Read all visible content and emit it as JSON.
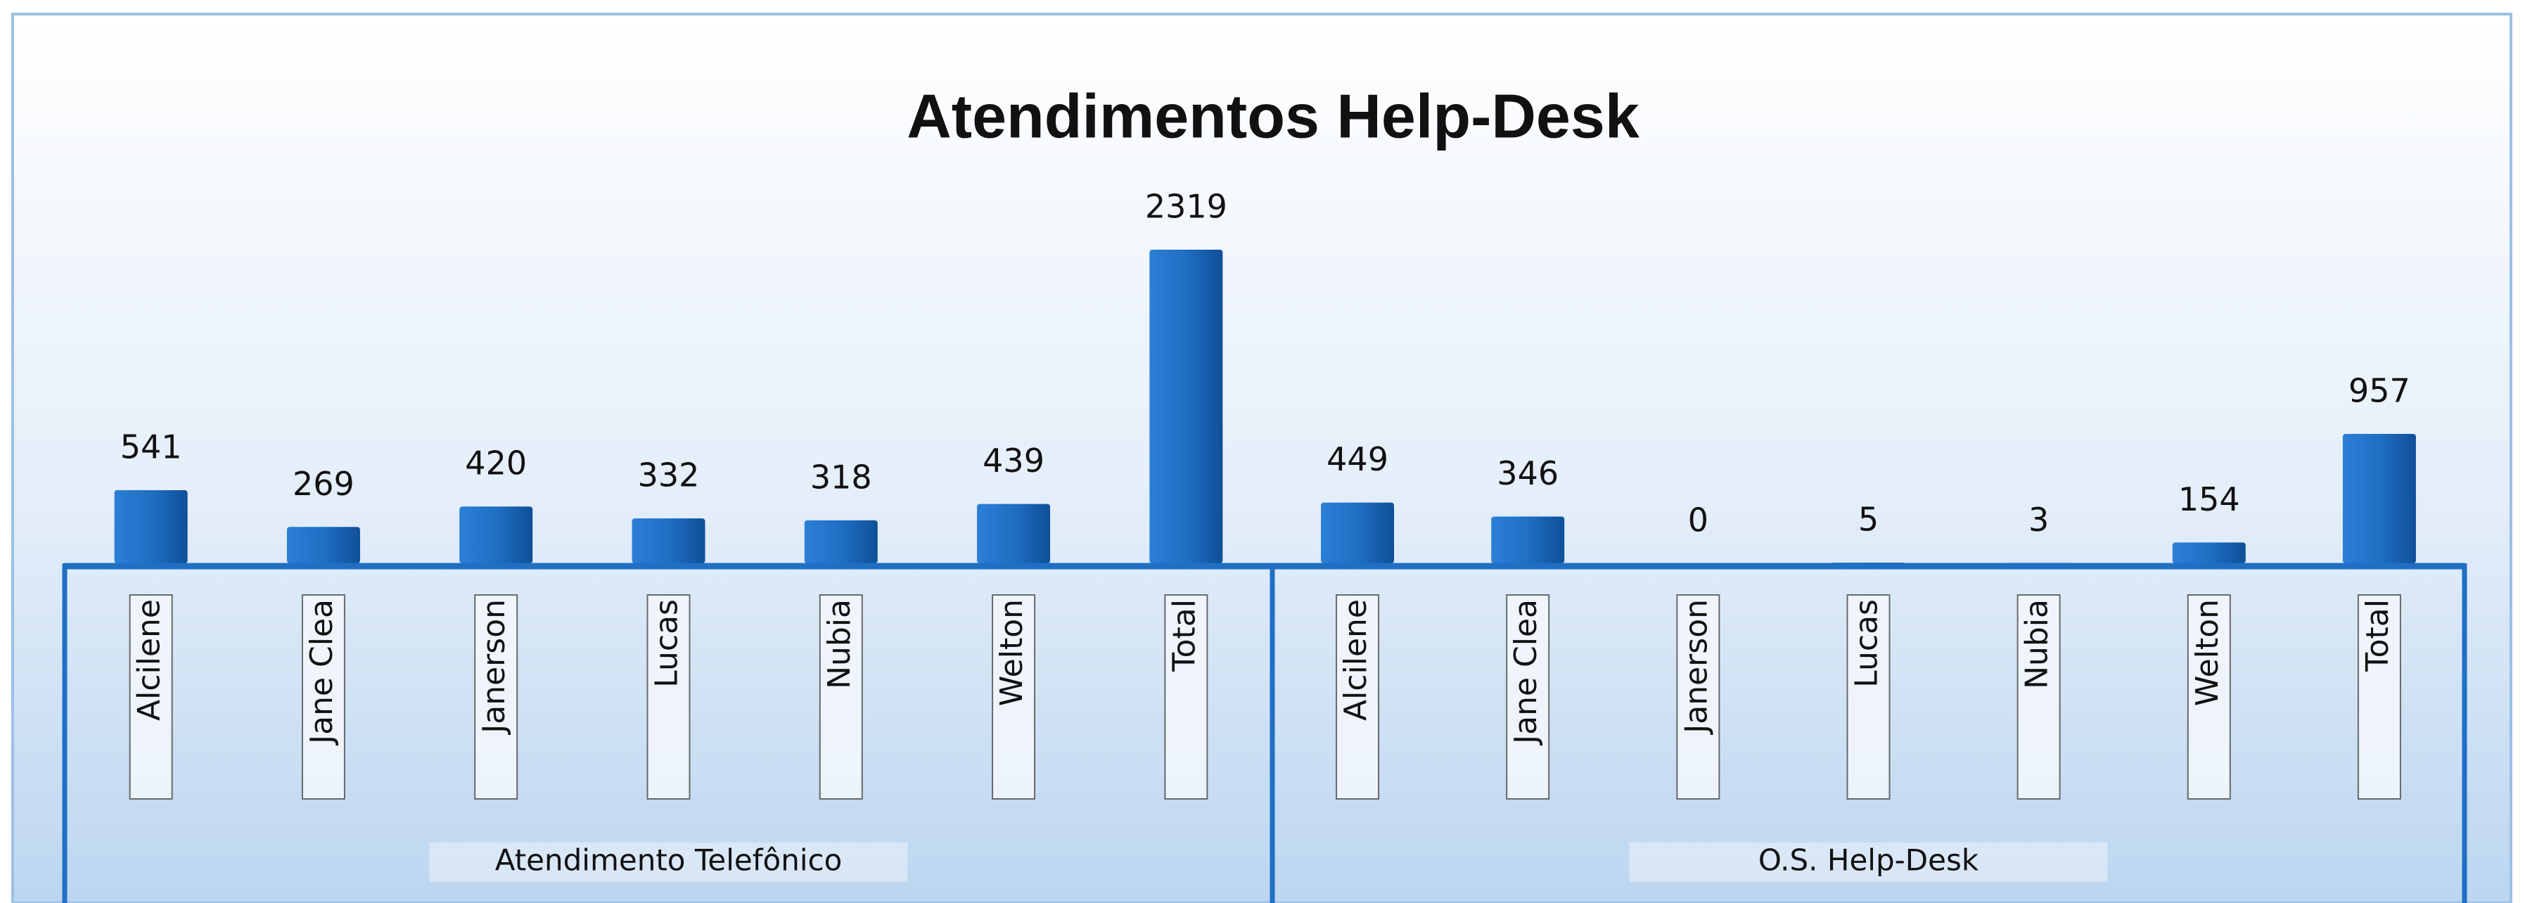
{
  "chart_data": {
    "type": "bar",
    "title": "Atendimentos Help-Desk",
    "color": "#1f6fc4",
    "groups": [
      {
        "label": "Atendimento Telefônico",
        "categories": [
          "Alcilene",
          "Jane Clea",
          "Janerson",
          "Lucas",
          "Nubia",
          "Welton",
          "Total"
        ],
        "values": [
          541,
          269,
          420,
          332,
          318,
          439,
          2319
        ]
      },
      {
        "label": "O.S. Help-Desk",
        "categories": [
          "Alcilene",
          "Jane Clea",
          "Janerson",
          "Lucas",
          "Nubia",
          "Welton",
          "Total"
        ],
        "values": [
          449,
          346,
          0,
          5,
          3,
          154,
          957
        ]
      }
    ]
  }
}
